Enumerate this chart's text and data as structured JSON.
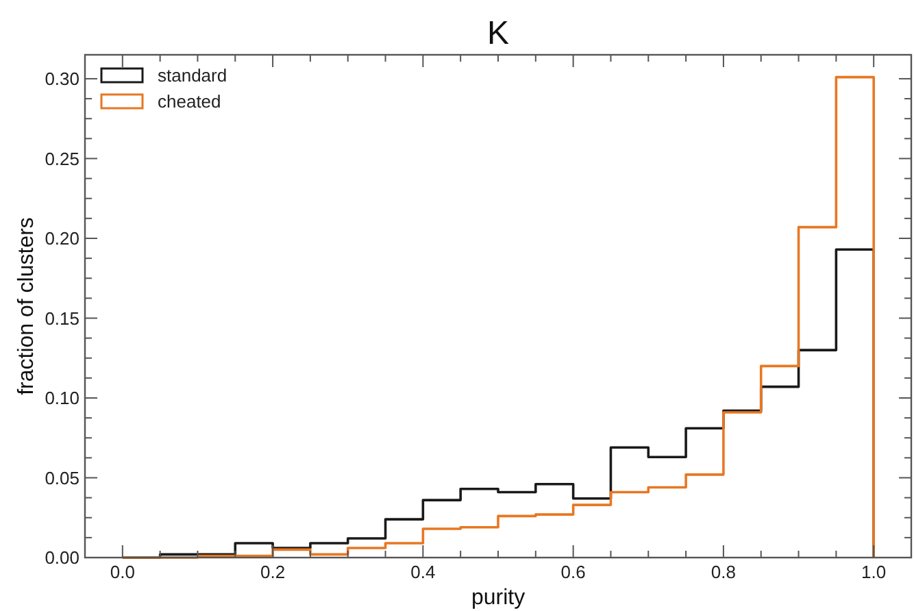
{
  "chart_data": {
    "type": "histogram",
    "title": "K",
    "xlabel": "purity",
    "ylabel": "fraction of clusters",
    "bins": [
      0,
      0.05,
      0.1,
      0.15,
      0.2,
      0.25,
      0.3,
      0.35,
      0.4,
      0.45,
      0.5,
      0.55,
      0.6,
      0.65,
      0.7,
      0.75,
      0.8,
      0.85,
      0.9,
      0.95,
      1.0
    ],
    "series": [
      {
        "name": "standard",
        "color": "#1a1a1a",
        "values": [
          0,
          0.002,
          0.002,
          0.009,
          0.006,
          0.009,
          0.012,
          0.024,
          0.036,
          0.043,
          0.041,
          0.046,
          0.037,
          0.069,
          0.063,
          0.081,
          0.092,
          0.107,
          0.13,
          0.193
        ]
      },
      {
        "name": "cheated",
        "color": "#e87722",
        "values": [
          0,
          0,
          0.001,
          0.001,
          0.005,
          0.002,
          0.006,
          0.009,
          0.018,
          0.019,
          0.026,
          0.027,
          0.033,
          0.041,
          0.044,
          0.052,
          0.091,
          0.12,
          0.207,
          0.301
        ]
      }
    ],
    "xlim": [
      -0.05,
      1.05
    ],
    "ylim": [
      0,
      0.315
    ],
    "xticks": [
      {
        "value": 0,
        "label": "0.0"
      },
      {
        "value": 0.2,
        "label": "0.2"
      },
      {
        "value": 0.4,
        "label": "0.4"
      },
      {
        "value": 0.6,
        "label": "0.6"
      },
      {
        "value": 0.8,
        "label": "0.8"
      },
      {
        "value": 1.0,
        "label": "1.0"
      }
    ],
    "yticks": [
      {
        "value": 0,
        "label": "0.00"
      },
      {
        "value": 0.05,
        "label": "0.05"
      },
      {
        "value": 0.1,
        "label": "0.10"
      },
      {
        "value": 0.15,
        "label": "0.15"
      },
      {
        "value": 0.2,
        "label": "0.20"
      },
      {
        "value": 0.25,
        "label": "0.25"
      },
      {
        "value": 0.3,
        "label": "0.30"
      }
    ],
    "grid": false,
    "legend": "top left"
  }
}
